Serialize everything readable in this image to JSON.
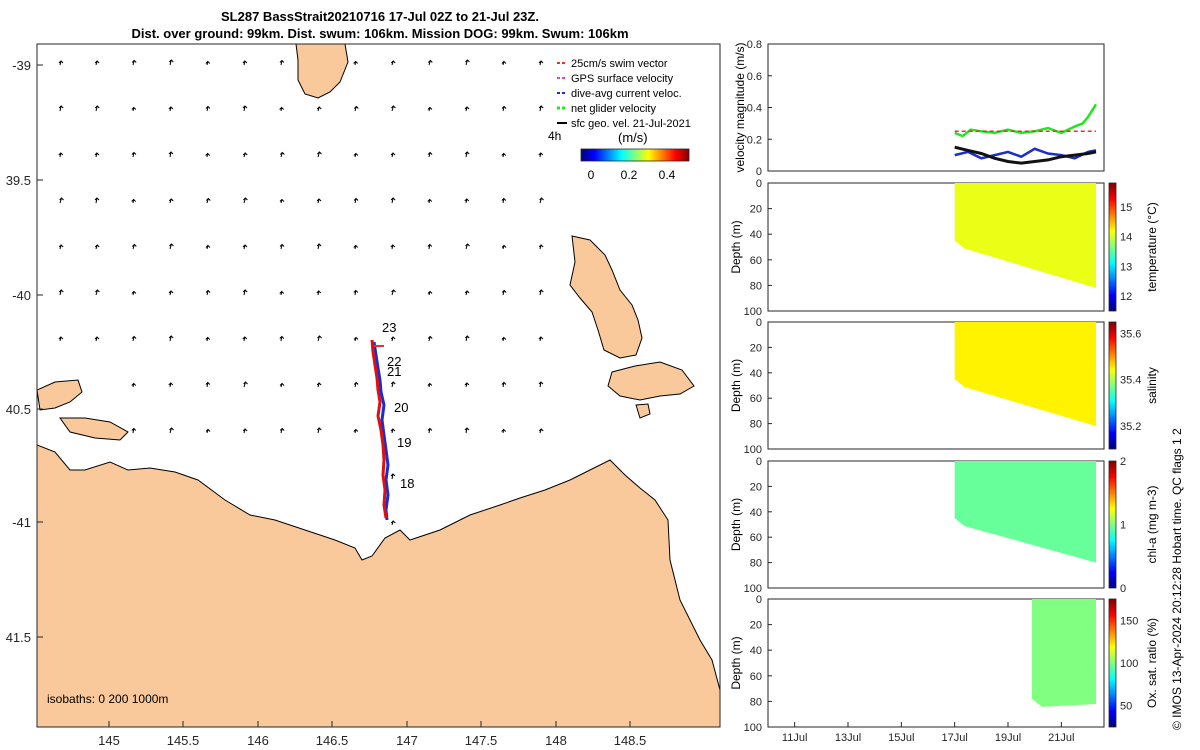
{
  "title_line1": "SL287 BassStrait20210716 17-Jul 02Z to 21-Jul 23Z.",
  "title_line2": "Dist. over ground: 99km. Dist. swum: 106km. Mission DOG: 99km. Swum: 106km",
  "side_note": "© IMOS 13-Apr-2024 20:12:28 Hobart time. QC flags 1  2",
  "colors": {
    "land": "#f9c99b",
    "swim_vector": "#e8322b",
    "gps": "#e23fe2",
    "dive_avg": "#1a2ecf",
    "net_glider": "#22e622",
    "geo": "#000000",
    "track_red": "#e01010",
    "track_blue": "#1a2ecf"
  },
  "map": {
    "lon_ticks": [
      "145",
      "145.5",
      "146",
      "146.5",
      "147",
      "147.5",
      "148",
      "148.5"
    ],
    "lat_ticks": [
      "-39",
      "39.5",
      "-40",
      "40.5",
      "-41",
      "41.5"
    ],
    "isobaths_label": "isobaths: 0   200  1000m",
    "legend": {
      "swim": "25cm/s swim vector",
      "gps": "GPS surface velocity",
      "dive": "dive-avg current veloc.",
      "net": "net glider velocity",
      "geo": "sfc geo. vel. 21-Jul-2021"
    },
    "four_h": "4h",
    "colorbar_unit": "(m/s)",
    "colorbar_ticks": [
      "0",
      "0.2",
      "0.4"
    ],
    "day_labels": [
      "23",
      "22",
      "21",
      "20",
      "19",
      "18"
    ]
  },
  "chart_data": [
    {
      "type": "line",
      "ylabel": "velocity magnitude (m/s)",
      "ylim": [
        0,
        0.8
      ],
      "yticks": [
        "0",
        "0.2",
        "0.4",
        "0.6",
        "0.8"
      ],
      "x_ticks": [
        "11Jul",
        "13Jul",
        "15Jul",
        "17Jul",
        "19Jul",
        "21Jul"
      ],
      "xlim_days": [
        10,
        22.6
      ],
      "series": [
        {
          "color": "green",
          "x": [
            17.0,
            17.3,
            17.6,
            18.0,
            18.5,
            19.0,
            19.5,
            20.0,
            20.5,
            21.0,
            21.5,
            21.8,
            22.0,
            22.3
          ],
          "y": [
            0.24,
            0.22,
            0.26,
            0.25,
            0.24,
            0.26,
            0.24,
            0.25,
            0.27,
            0.24,
            0.28,
            0.3,
            0.34,
            0.42
          ]
        },
        {
          "color": "blue",
          "x": [
            17.0,
            17.5,
            18.0,
            18.5,
            19.0,
            19.5,
            20.0,
            20.5,
            21.0,
            21.5,
            22.0,
            22.3
          ],
          "y": [
            0.1,
            0.12,
            0.08,
            0.1,
            0.12,
            0.09,
            0.14,
            0.11,
            0.1,
            0.08,
            0.12,
            0.13
          ]
        },
        {
          "color": "black",
          "x": [
            17.0,
            17.5,
            18.0,
            18.5,
            19.0,
            19.5,
            20.0,
            20.5,
            21.0,
            21.5,
            22.0,
            22.3
          ],
          "y": [
            0.15,
            0.13,
            0.11,
            0.08,
            0.06,
            0.05,
            0.06,
            0.07,
            0.09,
            0.1,
            0.11,
            0.12
          ]
        },
        {
          "color": "red",
          "x": [
            17.0,
            22.3
          ],
          "y": [
            0.25,
            0.25
          ]
        }
      ]
    },
    {
      "type": "heatmap",
      "ylabel": "Depth (m)",
      "cbar_label": "temperature (°C)",
      "cbar_ticks": [
        "12",
        "13",
        "14",
        "15"
      ],
      "range": [
        11.5,
        15.8
      ],
      "yticks": [
        "0",
        "20",
        "40",
        "60",
        "80",
        "100"
      ],
      "x_span_days": [
        17.0,
        22.3
      ],
      "max_depth_start": 45,
      "max_depth_end": 82,
      "value": 14.1
    },
    {
      "type": "heatmap",
      "ylabel": "Depth (m)",
      "cbar_label": "salinity",
      "cbar_ticks": [
        "35.2",
        "35.4",
        "35.6"
      ],
      "range": [
        35.1,
        35.65
      ],
      "yticks": [
        "0",
        "20",
        "40",
        "60",
        "80",
        "100"
      ],
      "x_span_days": [
        17.0,
        22.3
      ],
      "max_depth_start": 45,
      "max_depth_end": 82,
      "value": 35.45
    },
    {
      "type": "heatmap",
      "ylabel": "Depth (m)",
      "cbar_label": "chl-a (mg m-3)",
      "cbar_ticks": [
        "0",
        "1",
        "2"
      ],
      "range": [
        0,
        2
      ],
      "yticks": [
        "0",
        "20",
        "40",
        "60",
        "80",
        "100"
      ],
      "x_span_days": [
        17.0,
        22.3
      ],
      "max_depth_start": 45,
      "max_depth_end": 80,
      "value": 0.95
    },
    {
      "type": "heatmap",
      "ylabel": "Depth (m)",
      "cbar_label": "Ox. sat. ratio (%)",
      "cbar_ticks": [
        "50",
        "100",
        "150"
      ],
      "range": [
        25,
        175
      ],
      "yticks": [
        "0",
        "20",
        "40",
        "60",
        "80",
        "100"
      ],
      "x_span_days": [
        19.9,
        22.3
      ],
      "max_depth_start": 78,
      "max_depth_end": 82,
      "value": 100
    }
  ]
}
